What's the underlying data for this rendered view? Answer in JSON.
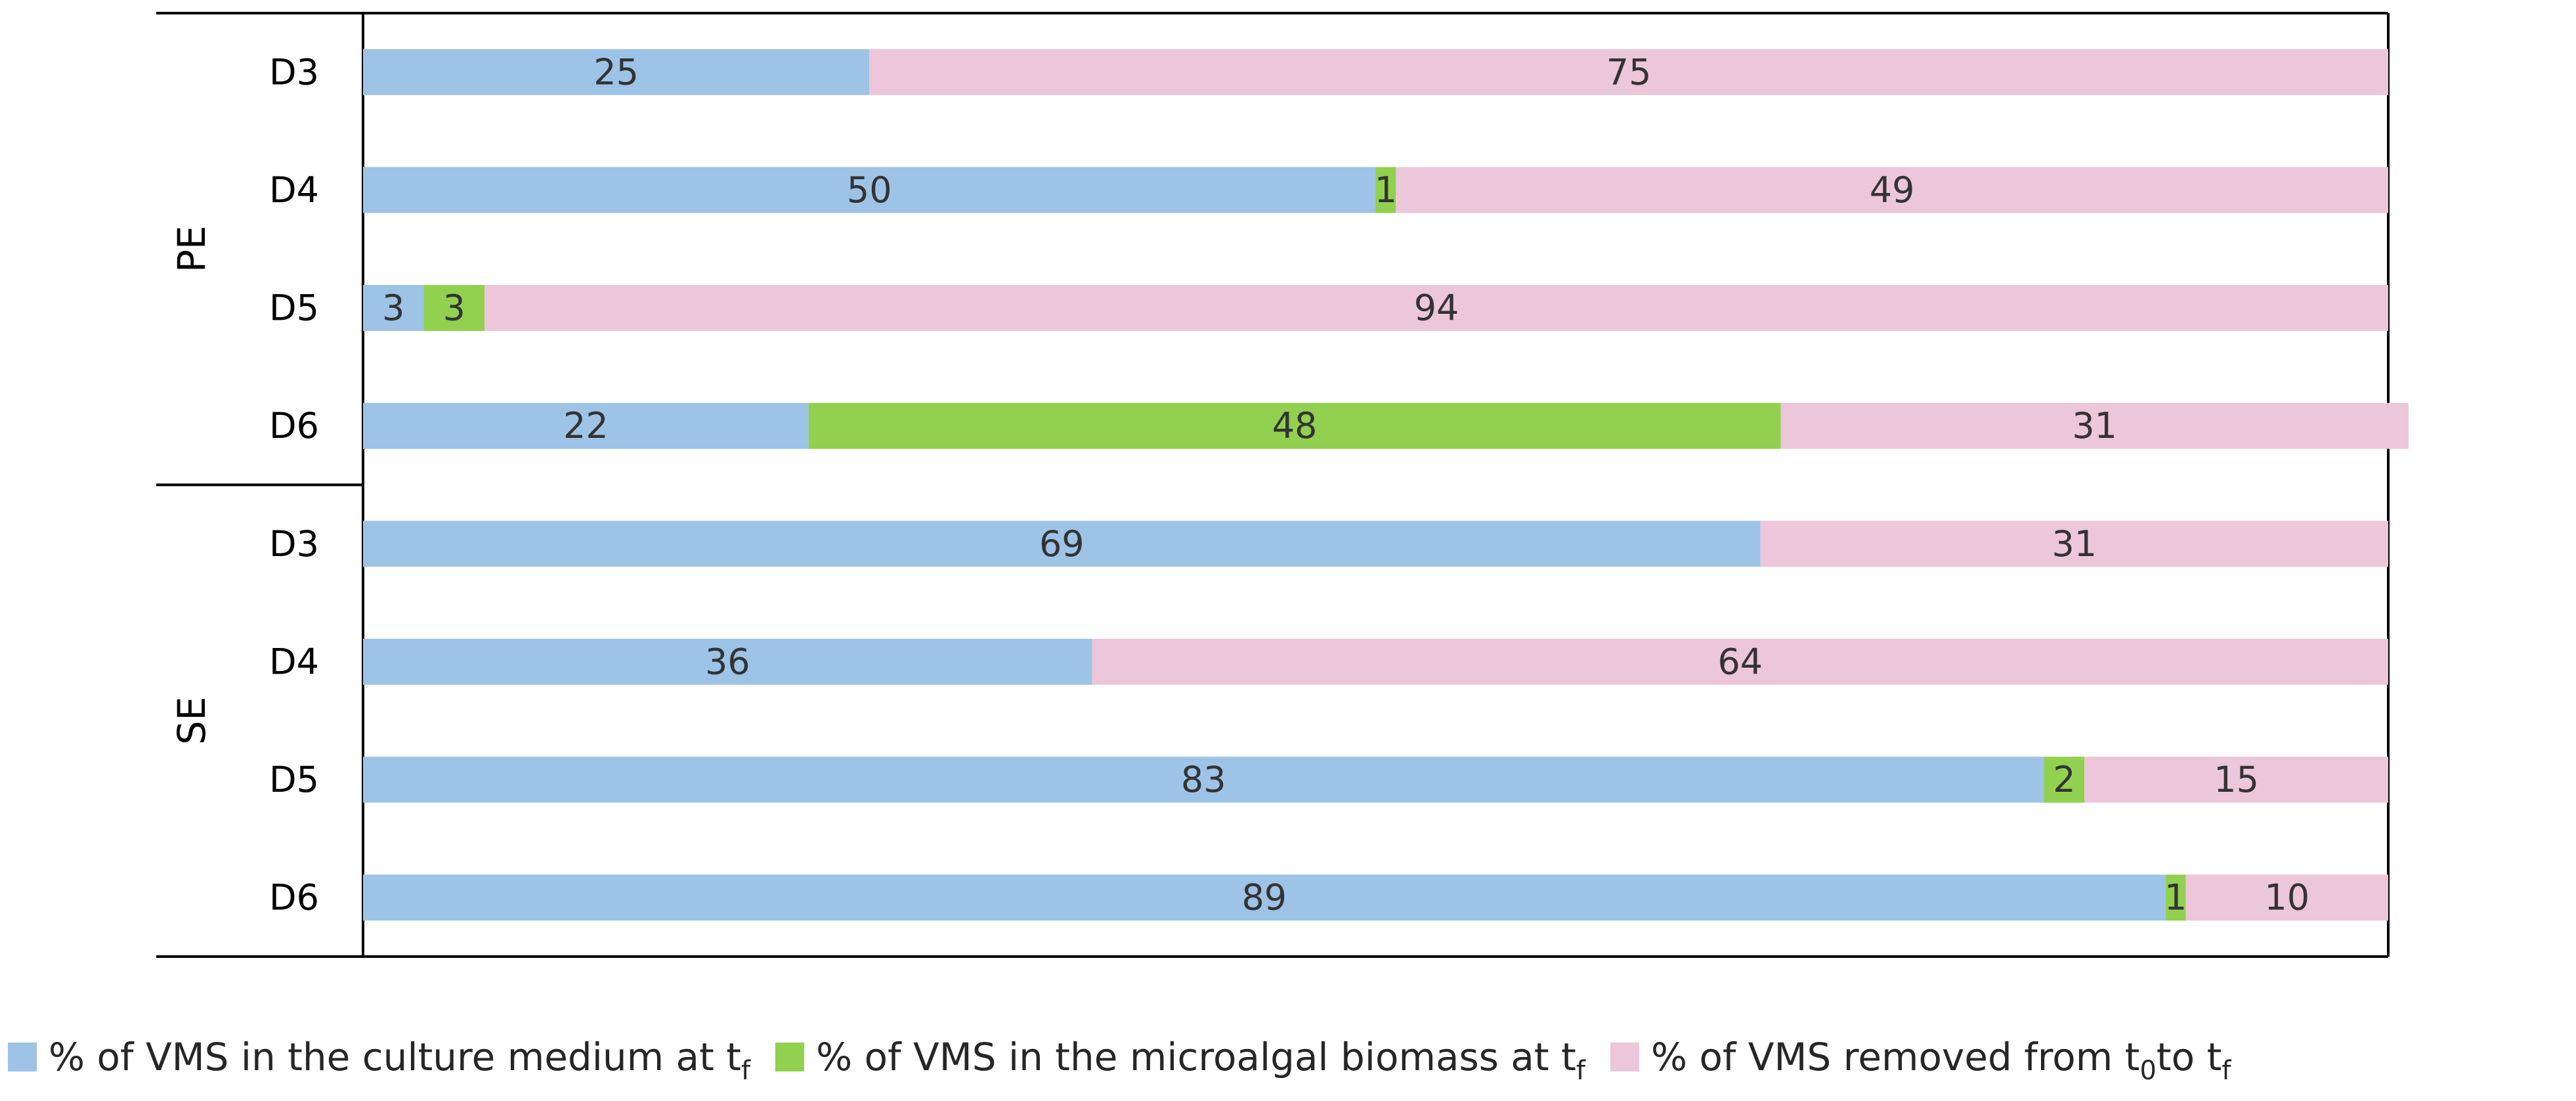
{
  "chart_data": {
    "type": "bar",
    "orientation": "horizontal",
    "stacked": true,
    "groups": [
      {
        "label": "PE",
        "categories": [
          "D3",
          "D4",
          "D5",
          "D6"
        ]
      },
      {
        "label": "SE",
        "categories": [
          "D3",
          "D4",
          "D5",
          "D6"
        ]
      }
    ],
    "series": [
      {
        "name": "% of VMS in the culture medium at t_f",
        "color": "#9dc3e6",
        "values": [
          25,
          50,
          3,
          22,
          69,
          36,
          83,
          89
        ]
      },
      {
        "name": "% of VMS in the microalgal biomass at t_f",
        "color": "#92d050",
        "values": [
          0,
          1,
          3,
          48,
          0,
          0,
          2,
          1
        ]
      },
      {
        "name": "% of VMS removed from t_0 to t_f",
        "color": "#ecc6d9",
        "values": [
          75,
          49,
          94,
          31,
          31,
          64,
          15,
          10
        ]
      }
    ],
    "xlim": [
      0,
      100
    ],
    "grid": false,
    "legend_position": "bottom"
  },
  "legend": [
    {
      "text": "% of VMS in the culture medium at t",
      "sub": "f"
    },
    {
      "text": "% of VMS in the microalgal biomass at t",
      "sub": "f"
    },
    {
      "text": "% of VMS removed from t",
      "sub": "0",
      "text2": " to t",
      "sub2": "f"
    }
  ]
}
